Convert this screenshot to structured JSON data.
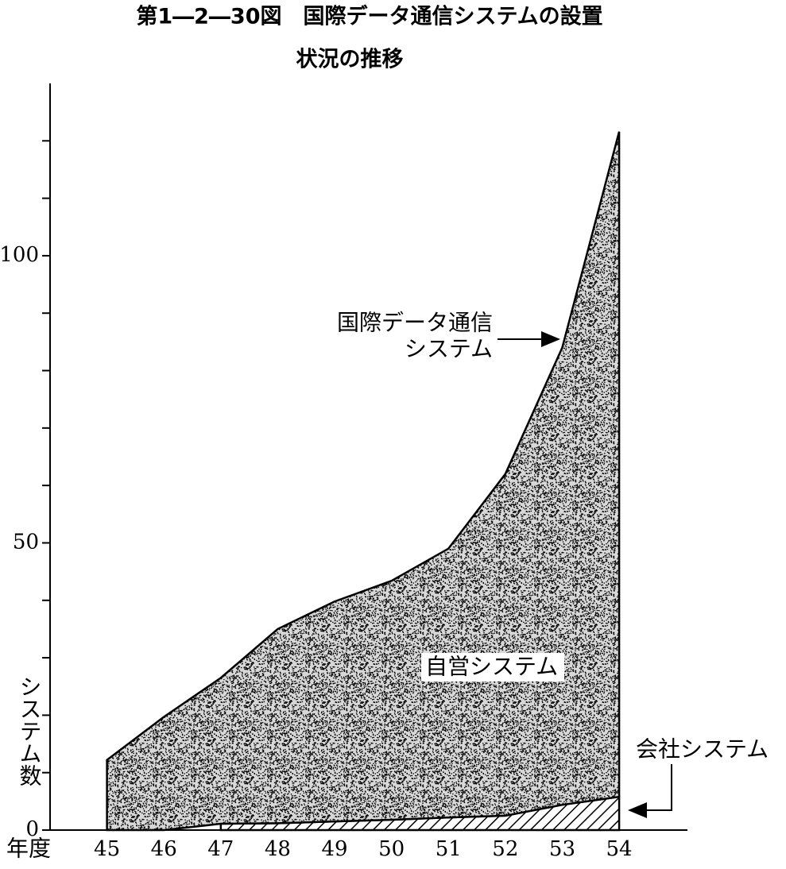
{
  "chart_data": {
    "type": "stacked-area",
    "title_lines": [
      "第1―2―30図　国際データ通信システムの設置",
      "状況の推移"
    ],
    "x_label": "年度",
    "y_label": "システム数",
    "x": [
      45,
      46,
      47,
      48,
      49,
      50,
      51,
      52,
      53,
      54
    ],
    "xlim": [
      44,
      55.2
    ],
    "xticks": [
      45,
      46,
      47,
      48,
      49,
      50,
      51,
      52,
      53,
      54
    ],
    "ylim": [
      0,
      130
    ],
    "yticks": [
      0,
      50,
      100
    ],
    "minor_yticks": [
      10,
      20,
      30,
      40,
      60,
      70,
      80,
      90,
      110,
      120
    ],
    "series": [
      {
        "name": "会社システム",
        "color": "#000000",
        "pattern": "hatch",
        "values": [
          null,
          null,
          1.1,
          1.2,
          1.5,
          1.8,
          2.2,
          2.5,
          4.4,
          5.8
        ]
      },
      {
        "name": "自営システム",
        "color": "#000000",
        "pattern": "dots",
        "values": [
          12.2,
          19.7,
          25.4,
          33.8,
          38.3,
          41.6,
          46.8,
          59.5,
          79.6,
          115.8
        ]
      }
    ],
    "total_annotation_lines": [
      "国際データ通信",
      "システム"
    ]
  }
}
